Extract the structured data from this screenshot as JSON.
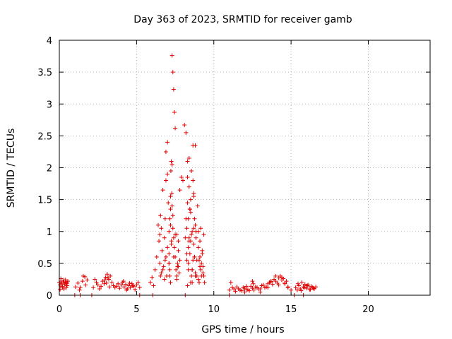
{
  "chart_data": {
    "type": "scatter",
    "title": "Day 363 of 2023, SRMTID for receiver gamb",
    "xlabel": "GPS time / hours",
    "ylabel": "SRMTID / TECUs",
    "xlim": [
      0,
      24
    ],
    "ylim": [
      0,
      4
    ],
    "xticks": [
      0,
      5,
      10,
      15,
      20
    ],
    "yticks": [
      0,
      0.5,
      1,
      1.5,
      2,
      2.5,
      3,
      3.5,
      4
    ],
    "xtick_labels": [
      "0",
      "5",
      "10",
      "15",
      "20"
    ],
    "ytick_labels": [
      "0",
      "0.5",
      "1",
      "1.5",
      "2",
      "2.5",
      "3",
      "3.5",
      "4"
    ],
    "grid": true,
    "marker": "+",
    "color": "#e00000",
    "x": [
      0.0,
      0.05,
      0.1,
      0.15,
      0.2,
      0.25,
      0.3,
      0.35,
      0.4,
      0.45,
      0.5,
      0.55,
      0.1,
      0.2,
      0.3,
      0.4,
      0.5,
      0.05,
      0.25,
      0.45,
      1.05,
      1.2,
      1.35,
      1.5,
      1.65,
      1.8,
      1.3,
      1.55,
      1.7,
      2.2,
      2.3,
      2.4,
      2.5,
      2.6,
      2.7,
      2.8,
      2.9,
      3.0,
      3.1,
      3.2,
      3.3,
      3.4,
      3.5,
      3.6,
      2.95,
      3.05,
      3.15,
      3.25,
      3.7,
      3.8,
      3.9,
      4.0,
      4.1,
      4.2,
      4.3,
      4.4,
      4.5,
      4.6,
      4.7,
      4.8,
      4.9,
      5.0,
      5.1,
      5.2,
      4.15,
      4.35,
      4.55,
      4.75,
      5.9,
      6.0,
      6.1,
      6.2,
      6.3,
      6.4,
      6.45,
      6.5,
      6.55,
      6.6,
      6.65,
      6.7,
      6.75,
      6.8,
      6.85,
      6.9,
      6.95,
      7.0,
      7.05,
      7.1,
      6.5,
      6.55,
      6.6,
      6.7,
      6.8,
      6.9,
      7.0,
      6.85,
      6.9,
      7.0,
      7.1,
      7.2,
      7.15,
      7.2,
      7.25,
      7.3,
      7.35,
      7.4,
      7.45,
      7.5,
      7.1,
      7.15,
      7.2,
      7.22,
      7.25,
      7.28,
      7.3,
      7.35,
      7.4,
      7.5,
      7.6,
      7.7,
      7.8,
      7.9,
      8.0,
      7.6,
      7.65,
      7.7,
      7.75,
      7.8,
      7.1,
      7.15,
      7.2,
      7.25,
      7.3,
      7.35,
      7.4,
      7.45,
      7.5,
      7.55,
      7.6,
      7.65,
      7.7,
      8.1,
      8.2,
      8.25,
      8.3,
      8.35,
      8.4,
      8.45,
      8.5,
      8.55,
      8.6,
      8.65,
      8.7,
      8.75,
      8.8,
      8.85,
      8.9,
      8.95,
      9.0,
      9.05,
      9.1,
      8.3,
      8.35,
      8.4,
      8.45,
      8.5,
      8.55,
      8.6,
      8.65,
      8.7,
      8.75,
      8.8,
      8.85,
      8.9,
      8.3,
      8.5,
      8.7,
      8.4,
      8.6,
      8.8,
      8.15,
      8.2,
      8.25,
      8.3,
      8.35,
      8.4,
      8.5,
      8.6,
      8.7,
      8.8,
      8.25,
      8.35,
      8.45,
      8.55,
      8.65,
      8.75,
      9.0,
      9.05,
      9.1,
      9.15,
      9.2,
      9.25,
      9.3,
      9.35,
      9.4,
      9.1,
      9.2,
      9.3,
      9.0,
      9.15,
      9.25,
      9.35,
      11.0,
      11.2,
      11.4,
      11.6,
      11.8,
      12.0,
      12.2,
      12.4,
      12.6,
      12.8,
      13.0,
      13.2,
      13.4,
      13.6,
      13.8,
      14.0,
      14.2,
      14.4,
      14.6,
      14.8,
      11.1,
      11.3,
      11.5,
      11.7,
      11.9,
      12.1,
      12.3,
      12.5,
      12.7,
      12.9,
      13.1,
      13.3,
      13.5,
      13.7,
      13.9,
      14.1,
      14.3,
      14.5,
      14.7,
      12.0,
      12.1,
      12.5,
      12.55,
      13.0,
      13.5,
      13.7,
      14.0,
      14.2,
      14.4,
      14.6,
      14.8,
      15.0,
      15.3,
      15.4,
      15.5,
      15.6,
      15.7,
      15.8,
      15.9,
      16.0,
      16.1,
      16.2,
      16.3,
      16.4,
      16.5,
      16.6,
      15.45,
      15.65,
      15.85,
      16.05,
      16.25,
      16.45,
      1.0,
      1.35,
      2.1,
      5.2,
      6.05,
      8.15,
      11.0,
      15.2,
      15.8
    ],
    "y": [
      0.2,
      0.16,
      0.22,
      0.18,
      0.14,
      0.2,
      0.24,
      0.17,
      0.21,
      0.12,
      0.19,
      0.22,
      0.26,
      0.12,
      0.1,
      0.24,
      0.15,
      0.09,
      0.2,
      0.18,
      0.13,
      0.19,
      0.12,
      0.22,
      0.29,
      0.24,
      0.08,
      0.3,
      0.16,
      0.12,
      0.25,
      0.2,
      0.16,
      0.1,
      0.14,
      0.22,
      0.18,
      0.28,
      0.33,
      0.25,
      0.3,
      0.2,
      0.15,
      0.12,
      0.24,
      0.19,
      0.27,
      0.13,
      0.14,
      0.18,
      0.11,
      0.16,
      0.2,
      0.13,
      0.17,
      0.1,
      0.15,
      0.12,
      0.18,
      0.14,
      0.09,
      0.16,
      0.2,
      0.12,
      0.22,
      0.08,
      0.19,
      0.15,
      0.2,
      0.28,
      0.15,
      0.4,
      0.6,
      1.1,
      0.85,
      0.5,
      1.25,
      0.35,
      0.7,
      1.65,
      0.45,
      0.9,
      1.2,
      0.6,
      0.3,
      0.75,
      1.45,
      0.5,
      0.95,
      0.3,
      1.05,
      0.4,
      0.25,
      1.8,
      1.9,
      0.55,
      2.25,
      2.4,
      0.65,
      1.35,
      1.2,
      1.55,
      0.85,
      3.76,
      3.5,
      3.23,
      2.87,
      2.62,
      1.0,
      0.4,
      1.1,
      1.95,
      2.1,
      1.6,
      2.05,
      1.25,
      0.9,
      0.6,
      0.95,
      0.45,
      1.65,
      1.85,
      1.8,
      0.3,
      0.5,
      0.7,
      0.35,
      0.55,
      0.5,
      0.3,
      0.2,
      0.8,
      1.4,
      1.05,
      0.6,
      0.75,
      0.95,
      0.4,
      0.25,
      0.45,
      0.85,
      2.67,
      2.55,
      1.05,
      2.1,
      0.5,
      1.7,
      1.35,
      0.85,
      1.95,
      0.4,
      2.35,
      1.6,
      0.6,
      2.35,
      1.0,
      0.3,
      1.4,
      0.75,
      0.2,
      0.45,
      1.45,
      1.2,
      0.9,
      0.65,
      1.3,
      0.3,
      1.0,
      0.55,
      0.8,
      1.2,
      0.35,
      0.9,
      0.55,
      0.15,
      0.2,
      1.55,
      0.85,
      0.4,
      1.1,
      0.9,
      1.2,
      0.65,
      1.85,
      0.4,
      2.15,
      1.5,
      0.2,
      1.05,
      0.3,
      0.55,
      0.75,
      1.35,
      0.95,
      1.8,
      0.6,
      0.25,
      0.55,
      0.85,
      1.05,
      0.3,
      0.7,
      0.45,
      0.95,
      0.2,
      0.6,
      0.5,
      0.35,
      1.0,
      0.4,
      0.65,
      0.3,
      0.08,
      0.12,
      0.06,
      0.1,
      0.07,
      0.11,
      0.09,
      0.14,
      0.08,
      0.12,
      0.1,
      0.16,
      0.13,
      0.2,
      0.17,
      0.22,
      0.27,
      0.24,
      0.18,
      0.13,
      0.2,
      0.1,
      0.13,
      0.08,
      0.12,
      0.09,
      0.07,
      0.11,
      0.13,
      0.1,
      0.15,
      0.12,
      0.18,
      0.21,
      0.25,
      0.19,
      0.3,
      0.26,
      0.22,
      0.05,
      0.14,
      0.22,
      0.18,
      0.05,
      0.12,
      0.22,
      0.3,
      0.16,
      0.28,
      0.19,
      0.12,
      0.08,
      0.12,
      0.08,
      0.15,
      0.1,
      0.2,
      0.13,
      0.17,
      0.11,
      0.16,
      0.09,
      0.14,
      0.12,
      0.1,
      0.13,
      0.18,
      0.07,
      0.12,
      0.15,
      0.09,
      0.11,
      0.0,
      0.0,
      0.0,
      0.0,
      0.0,
      0.0,
      0.0,
      0.0,
      0.0
    ]
  }
}
